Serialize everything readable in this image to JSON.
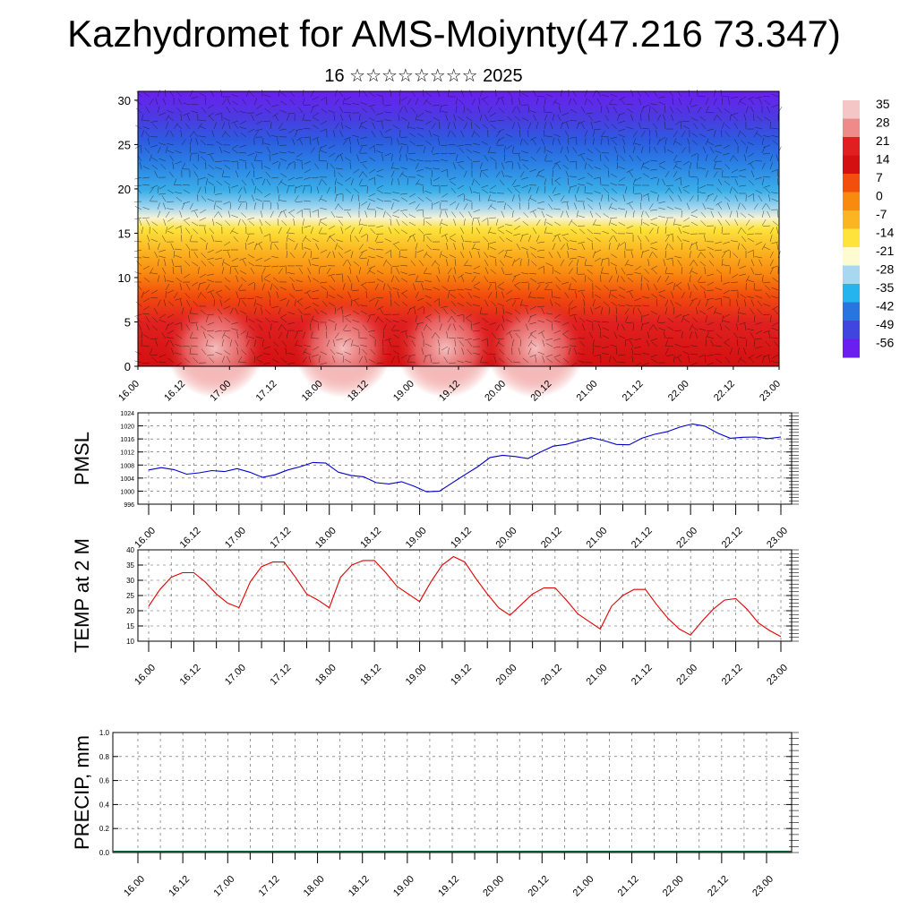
{
  "title": "Kazhydromet for AMS-Moiynty(47.216 73.347)",
  "subtitle": "16 ☆☆☆☆☆☆☆☆ 2025",
  "chart_data": [
    {
      "type": "heatmap",
      "title": "",
      "x_ticks": [
        "16.00",
        "16.12",
        "17.00",
        "17.12",
        "18.00",
        "18.12",
        "19.00",
        "19.12",
        "20.00",
        "20.12",
        "21.00",
        "21.12",
        "22.00",
        "22.12",
        "23.00"
      ],
      "y_ticks": [
        0,
        5,
        10,
        15,
        20,
        25,
        30
      ],
      "ylim": [
        0,
        31
      ],
      "colorbar_labels": [
        "35",
        "28",
        "21",
        "14",
        "7",
        "0",
        "-7",
        "-14",
        "-21",
        "-28",
        "-35",
        "-42",
        "-49",
        "-56"
      ],
      "colorbar_colors": [
        "#f4c6c6",
        "#ee8a8a",
        "#e02020",
        "#d41010",
        "#f24e0c",
        "#f98a10",
        "#fbb522",
        "#fde33b",
        "#fffbd0",
        "#a7d8f0",
        "#25b4ee",
        "#2875e0",
        "#4045df",
        "#6a1ff0"
      ],
      "overlay": "wind barbs"
    },
    {
      "type": "line",
      "ylabel": "PMSL",
      "ylim": [
        996,
        1024
      ],
      "y_ticks": [
        996,
        1000,
        1004,
        1008,
        1012,
        1016,
        1020,
        1024
      ],
      "x_ticks": [
        "16.00",
        "16.12",
        "17.00",
        "17.12",
        "18.00",
        "18.12",
        "19.00",
        "19.12",
        "20.00",
        "20.12",
        "21.00",
        "21.12",
        "22.00",
        "22.12",
        "23.00"
      ],
      "color": "#0000cc",
      "values": [
        1006.5,
        1007.2,
        1006.6,
        1005.2,
        1005.6,
        1006.3,
        1006.0,
        1006.9,
        1005.8,
        1004.2,
        1005.0,
        1006.5,
        1007.5,
        1008.8,
        1008.6,
        1005.8,
        1004.8,
        1004.4,
        1002.6,
        1002.2,
        1002.9,
        1001.5,
        999.8,
        1000.0,
        1002.5,
        1005.0,
        1007.4,
        1010.3,
        1011.0,
        1010.6,
        1010.0,
        1012.0,
        1013.8,
        1014.3,
        1015.4,
        1016.4,
        1015.5,
        1014.3,
        1014.2,
        1016.2,
        1017.4,
        1018.2,
        1019.6,
        1020.6,
        1019.9,
        1017.8,
        1016.2,
        1016.5,
        1016.6,
        1016.1,
        1016.6
      ]
    },
    {
      "type": "line",
      "ylabel": "TEMP at 2 M",
      "ylim": [
        10,
        40
      ],
      "y_ticks": [
        10,
        15,
        20,
        25,
        30,
        35,
        40
      ],
      "x_ticks": [
        "16.00",
        "16.12",
        "17.00",
        "17.12",
        "18.00",
        "18.12",
        "19.00",
        "19.12",
        "20.00",
        "20.12",
        "21.00",
        "21.12",
        "22.00",
        "22.12",
        "23.00"
      ],
      "color": "#e00000",
      "values": [
        21.5,
        27.0,
        31.0,
        32.5,
        32.5,
        29.5,
        25.5,
        22.5,
        21.0,
        29.5,
        34.5,
        36.0,
        36.0,
        31.0,
        25.5,
        23.5,
        21.0,
        31.0,
        35.0,
        36.5,
        36.5,
        32.5,
        28.0,
        25.5,
        23.0,
        29.5,
        35.0,
        37.8,
        36.0,
        30.5,
        25.5,
        21.0,
        18.5,
        22.0,
        25.5,
        27.5,
        27.5,
        23.5,
        19.0,
        16.5,
        14.0,
        21.5,
        25.0,
        27.0,
        27.0,
        22.0,
        17.5,
        14.0,
        12.0,
        16.5,
        20.5,
        23.5,
        24.0,
        20.5,
        16.0,
        13.5,
        11.5
      ]
    },
    {
      "type": "bar",
      "ylabel": "PRECIP, mm",
      "ylim": [
        0,
        1
      ],
      "y_ticks": [
        "0.0",
        "0.2",
        "0.4",
        "0.6",
        "0.8",
        "1.0"
      ],
      "x_ticks": [
        "16.00",
        "16.12",
        "17.00",
        "17.12",
        "18.00",
        "18.12",
        "19.00",
        "19.12",
        "20.00",
        "20.12",
        "21.00",
        "21.12",
        "22.00",
        "22.12",
        "23.00"
      ],
      "values": []
    }
  ]
}
